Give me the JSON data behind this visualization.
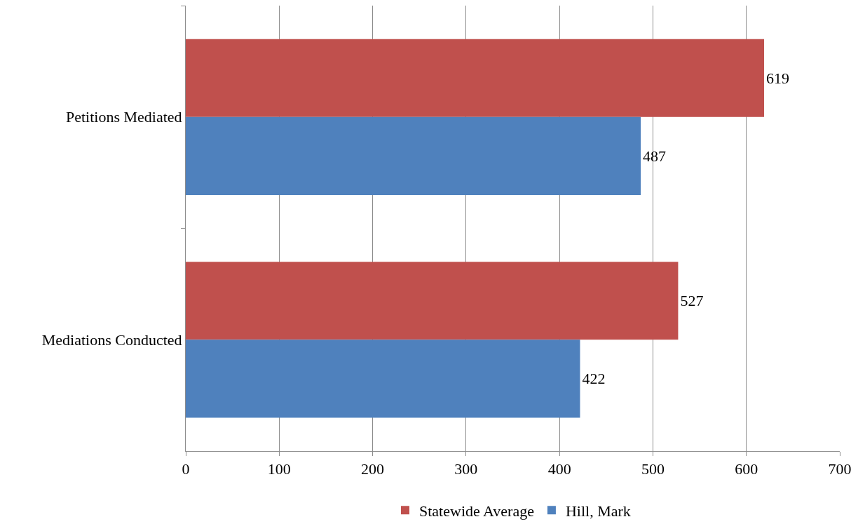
{
  "chart_data": {
    "type": "bar",
    "orientation": "horizontal",
    "categories": [
      "Petitions Mediated",
      "Mediations Conducted"
    ],
    "series": [
      {
        "name": "Statewide Average",
        "color": "#c0504d",
        "values": [
          619,
          527
        ]
      },
      {
        "name": "Hill, Mark",
        "color": "#4f81bd",
        "values": [
          487,
          422
        ]
      }
    ],
    "xlim": [
      0,
      700
    ],
    "xticks": [
      0,
      100,
      200,
      300,
      400,
      500,
      600,
      700
    ],
    "grid": "x",
    "legend": "bottom",
    "data_labels": true
  }
}
